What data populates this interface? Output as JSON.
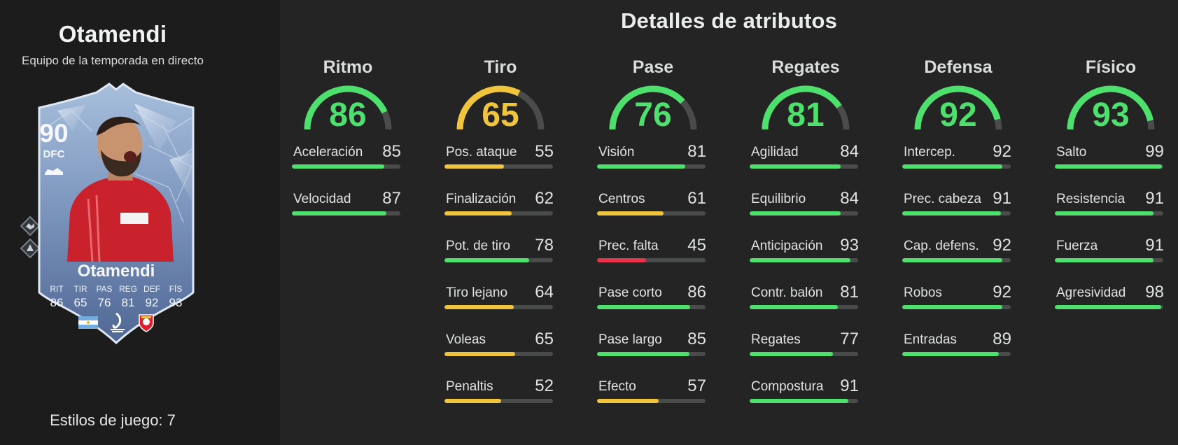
{
  "player": {
    "name": "Otamendi",
    "subtitle": "Equipo de la temporada en directo",
    "playstyles_label": "Estilos de juego: 7"
  },
  "card": {
    "rating": "90",
    "position": "DFC",
    "name": "Otamendi",
    "stats": [
      {
        "label": "RIT",
        "value": "86"
      },
      {
        "label": "TIR",
        "value": "65"
      },
      {
        "label": "PAS",
        "value": "76"
      },
      {
        "label": "REG",
        "value": "81"
      },
      {
        "label": "DEF",
        "value": "92"
      },
      {
        "label": "FÍS",
        "value": "93"
      }
    ],
    "badges": [
      "argentina-flag-icon",
      "liga-portugal-icon",
      "benfica-crest-icon"
    ]
  },
  "panel": {
    "title": "Detalles de atributos"
  },
  "colors": {
    "green": "#4ee06d",
    "yellow": "#f0c43c",
    "red": "#e8344b",
    "track": "#4a4c4b"
  },
  "categories": [
    {
      "title": "Ritmo",
      "value": "86",
      "stats": [
        {
          "label": "Aceleración",
          "value": "85"
        },
        {
          "label": "Velocidad",
          "value": "87"
        }
      ]
    },
    {
      "title": "Tiro",
      "value": "65",
      "stats": [
        {
          "label": "Pos. ataque",
          "value": "55"
        },
        {
          "label": "Finalización",
          "value": "62"
        },
        {
          "label": "Pot. de tiro",
          "value": "78"
        },
        {
          "label": "Tiro lejano",
          "value": "64"
        },
        {
          "label": "Voleas",
          "value": "65"
        },
        {
          "label": "Penaltis",
          "value": "52"
        }
      ]
    },
    {
      "title": "Pase",
      "value": "76",
      "stats": [
        {
          "label": "Visión",
          "value": "81"
        },
        {
          "label": "Centros",
          "value": "61"
        },
        {
          "label": "Prec. falta",
          "value": "45"
        },
        {
          "label": "Pase corto",
          "value": "86"
        },
        {
          "label": "Pase largo",
          "value": "85"
        },
        {
          "label": "Efecto",
          "value": "57"
        }
      ]
    },
    {
      "title": "Regates",
      "value": "81",
      "stats": [
        {
          "label": "Agilidad",
          "value": "84"
        },
        {
          "label": "Equilibrio",
          "value": "84"
        },
        {
          "label": "Anticipación",
          "value": "93"
        },
        {
          "label": "Contr. balón",
          "value": "81"
        },
        {
          "label": "Regates",
          "value": "77"
        },
        {
          "label": "Compostura",
          "value": "91"
        }
      ]
    },
    {
      "title": "Defensa",
      "value": "92",
      "stats": [
        {
          "label": "Intercep.",
          "value": "92"
        },
        {
          "label": "Prec. cabeza",
          "value": "91"
        },
        {
          "label": "Cap. defens.",
          "value": "92"
        },
        {
          "label": "Robos",
          "value": "92"
        },
        {
          "label": "Entradas",
          "value": "89"
        }
      ]
    },
    {
      "title": "Físico",
      "value": "93",
      "stats": [
        {
          "label": "Salto",
          "value": "99"
        },
        {
          "label": "Resistencia",
          "value": "91"
        },
        {
          "label": "Fuerza",
          "value": "91"
        },
        {
          "label": "Agresividad",
          "value": "98"
        }
      ]
    }
  ]
}
